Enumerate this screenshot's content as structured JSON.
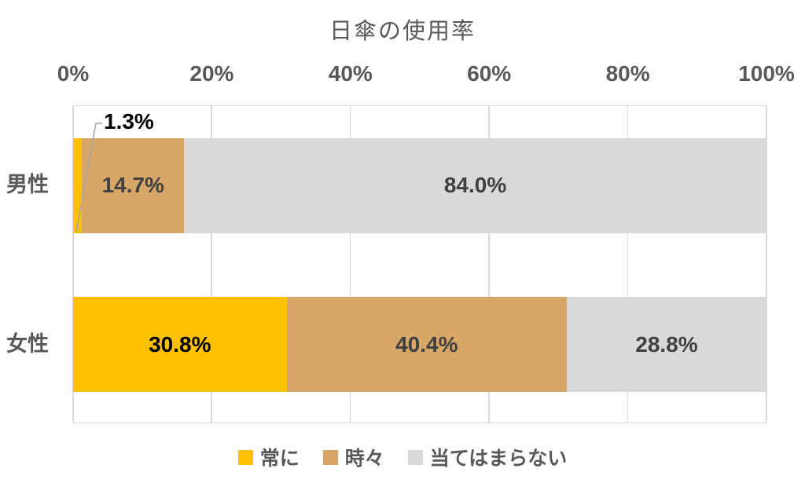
{
  "chart_data": {
    "type": "bar",
    "stacked": true,
    "orientation": "horizontal",
    "title": "日傘の使用率",
    "categories": [
      "男性",
      "女性"
    ],
    "series": [
      {
        "name": "常に",
        "color": "#FFC000",
        "values": [
          1.3,
          30.8
        ]
      },
      {
        "name": "時々",
        "color": "#D8A768",
        "values": [
          14.7,
          40.4
        ]
      },
      {
        "name": "当てはまらない",
        "color": "#D9D9D9",
        "values": [
          84.0,
          28.8
        ]
      }
    ],
    "value_labels": [
      [
        "1.3%",
        "14.7%",
        "84.0%"
      ],
      [
        "30.8%",
        "40.4%",
        "28.8%"
      ]
    ],
    "label_colors": [
      "#000000",
      "#404040",
      "#404040"
    ],
    "x_ticks": [
      "0%",
      "20%",
      "40%",
      "60%",
      "80%",
      "100%"
    ],
    "xlim": [
      0,
      100
    ],
    "axis_position": "top",
    "legend_position": "bottom",
    "grid": "vertical",
    "grid_color": "#D9D9D9",
    "axis_text_color": "#595959",
    "leader_line_color": "#A6A6A6",
    "callout": {
      "text": "1.3%",
      "category": "男性",
      "series": "常に"
    }
  }
}
